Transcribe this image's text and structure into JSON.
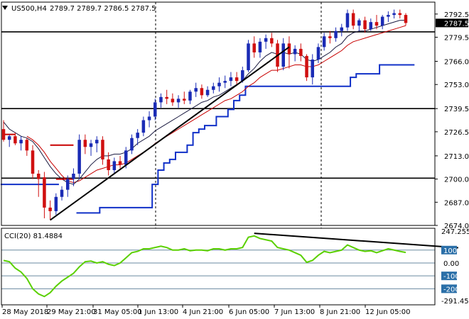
{
  "header": {
    "symbol_label": "US500,H4",
    "ohlc_text": "2789.7 2789.7 2786.5 2787.5"
  },
  "indicator_header": "CCI(20) 81.4884",
  "colors": {
    "bull": "#1a2bb5",
    "bear": "#d01010",
    "blue_line": "#1030c8",
    "red_line": "#c80000",
    "cci": "#5ad000",
    "trend": "#000000",
    "current_tag": "#000000"
  },
  "chart_data": {
    "type": "candlestick",
    "price_axis": {
      "ylim": [
        2674.0,
        2796.0
      ],
      "ticks": [
        "2792.5",
        "2779.5",
        "2766.0",
        "2753.0",
        "2739.5",
        "2726.5",
        "2713.0",
        "2700.0",
        "2687.0",
        "2674.0"
      ]
    },
    "current_price": "2787.5",
    "x_ticks": [
      "28 May 2018",
      "29 May 21:00",
      "31 May 05:00",
      "1 Jun 13:00",
      "4 Jun 21:00",
      "6 Jun 05:00",
      "7 Jun 13:00",
      "8 Jun 21:00",
      "12 Jun 05:00"
    ],
    "candles": [
      {
        "o": 2728,
        "h": 2733,
        "l": 2721,
        "c": 2722
      },
      {
        "o": 2722,
        "h": 2725,
        "l": 2718,
        "c": 2724
      },
      {
        "o": 2724,
        "h": 2726,
        "l": 2719,
        "c": 2720
      },
      {
        "o": 2720,
        "h": 2724,
        "l": 2716,
        "c": 2722
      },
      {
        "o": 2722,
        "h": 2723,
        "l": 2713,
        "c": 2716
      },
      {
        "o": 2716,
        "h": 2719,
        "l": 2700,
        "c": 2703
      },
      {
        "o": 2703,
        "h": 2705,
        "l": 2690,
        "c": 2700
      },
      {
        "o": 2701,
        "h": 2704,
        "l": 2678,
        "c": 2684
      },
      {
        "o": 2684,
        "h": 2688,
        "l": 2677,
        "c": 2682
      },
      {
        "o": 2682,
        "h": 2692,
        "l": 2680,
        "c": 2690
      },
      {
        "o": 2690,
        "h": 2696,
        "l": 2688,
        "c": 2694
      },
      {
        "o": 2694,
        "h": 2702,
        "l": 2690,
        "c": 2700
      },
      {
        "o": 2700,
        "h": 2706,
        "l": 2696,
        "c": 2703
      },
      {
        "o": 2703,
        "h": 2725,
        "l": 2700,
        "c": 2722
      },
      {
        "o": 2722,
        "h": 2725,
        "l": 2714,
        "c": 2718
      },
      {
        "o": 2718,
        "h": 2722,
        "l": 2713,
        "c": 2720
      },
      {
        "o": 2720,
        "h": 2724,
        "l": 2715,
        "c": 2722
      },
      {
        "o": 2722,
        "h": 2724,
        "l": 2708,
        "c": 2711
      },
      {
        "o": 2711,
        "h": 2715,
        "l": 2702,
        "c": 2705
      },
      {
        "o": 2705,
        "h": 2712,
        "l": 2703,
        "c": 2710
      },
      {
        "o": 2710,
        "h": 2713,
        "l": 2706,
        "c": 2708
      },
      {
        "o": 2708,
        "h": 2718,
        "l": 2706,
        "c": 2716
      },
      {
        "o": 2716,
        "h": 2725,
        "l": 2714,
        "c": 2723
      },
      {
        "o": 2723,
        "h": 2728,
        "l": 2719,
        "c": 2726
      },
      {
        "o": 2726,
        "h": 2735,
        "l": 2724,
        "c": 2733
      },
      {
        "o": 2733,
        "h": 2738,
        "l": 2729,
        "c": 2735
      },
      {
        "o": 2735,
        "h": 2745,
        "l": 2733,
        "c": 2743
      },
      {
        "o": 2743,
        "h": 2748,
        "l": 2740,
        "c": 2746
      },
      {
        "o": 2746,
        "h": 2750,
        "l": 2742,
        "c": 2745
      },
      {
        "o": 2745,
        "h": 2748,
        "l": 2741,
        "c": 2743
      },
      {
        "o": 2743,
        "h": 2747,
        "l": 2740,
        "c": 2745
      },
      {
        "o": 2745,
        "h": 2749,
        "l": 2742,
        "c": 2744
      },
      {
        "o": 2744,
        "h": 2750,
        "l": 2742,
        "c": 2749
      },
      {
        "o": 2749,
        "h": 2754,
        "l": 2746,
        "c": 2751
      },
      {
        "o": 2751,
        "h": 2753,
        "l": 2745,
        "c": 2747
      },
      {
        "o": 2747,
        "h": 2752,
        "l": 2746,
        "c": 2750
      },
      {
        "o": 2750,
        "h": 2754,
        "l": 2748,
        "c": 2752
      },
      {
        "o": 2752,
        "h": 2757,
        "l": 2749,
        "c": 2754
      },
      {
        "o": 2754,
        "h": 2758,
        "l": 2751,
        "c": 2755
      },
      {
        "o": 2755,
        "h": 2760,
        "l": 2752,
        "c": 2757
      },
      {
        "o": 2757,
        "h": 2760,
        "l": 2753,
        "c": 2755
      },
      {
        "o": 2755,
        "h": 2763,
        "l": 2754,
        "c": 2761
      },
      {
        "o": 2761,
        "h": 2778,
        "l": 2760,
        "c": 2776
      },
      {
        "o": 2776,
        "h": 2780,
        "l": 2768,
        "c": 2771
      },
      {
        "o": 2771,
        "h": 2779,
        "l": 2768,
        "c": 2777
      },
      {
        "o": 2777,
        "h": 2781,
        "l": 2773,
        "c": 2779
      },
      {
        "o": 2779,
        "h": 2782,
        "l": 2774,
        "c": 2776
      },
      {
        "o": 2776,
        "h": 2778,
        "l": 2760,
        "c": 2763
      },
      {
        "o": 2763,
        "h": 2779,
        "l": 2761,
        "c": 2776
      },
      {
        "o": 2776,
        "h": 2780,
        "l": 2762,
        "c": 2770
      },
      {
        "o": 2770,
        "h": 2775,
        "l": 2766,
        "c": 2773
      },
      {
        "o": 2773,
        "h": 2776,
        "l": 2766,
        "c": 2769
      },
      {
        "o": 2769,
        "h": 2770,
        "l": 2755,
        "c": 2757
      },
      {
        "o": 2757,
        "h": 2770,
        "l": 2753,
        "c": 2767
      },
      {
        "o": 2767,
        "h": 2776,
        "l": 2765,
        "c": 2774
      },
      {
        "o": 2774,
        "h": 2782,
        "l": 2772,
        "c": 2780
      },
      {
        "o": 2780,
        "h": 2783,
        "l": 2776,
        "c": 2779
      },
      {
        "o": 2779,
        "h": 2785,
        "l": 2777,
        "c": 2783
      },
      {
        "o": 2783,
        "h": 2787,
        "l": 2780,
        "c": 2785
      },
      {
        "o": 2785,
        "h": 2795,
        "l": 2783,
        "c": 2793
      },
      {
        "o": 2793,
        "h": 2795,
        "l": 2784,
        "c": 2786
      },
      {
        "o": 2786,
        "h": 2790,
        "l": 2783,
        "c": 2789
      },
      {
        "o": 2789,
        "h": 2791,
        "l": 2782,
        "c": 2784
      },
      {
        "o": 2784,
        "h": 2790,
        "l": 2783,
        "c": 2788
      },
      {
        "o": 2788,
        "h": 2792,
        "l": 2784,
        "c": 2786
      },
      {
        "o": 2786,
        "h": 2792,
        "l": 2784,
        "c": 2791
      },
      {
        "o": 2791,
        "h": 2794,
        "l": 2788,
        "c": 2792
      },
      {
        "o": 2792,
        "h": 2795,
        "l": 2790,
        "c": 2793
      },
      {
        "o": 2793,
        "h": 2795,
        "l": 2790,
        "c": 2792
      },
      {
        "o": 2792,
        "h": 2793,
        "l": 2786,
        "c": 2787.5
      }
    ],
    "blue_line": [
      2697,
      2697,
      2697,
      2697,
      2697,
      2697,
      2697,
      2697,
      2697,
      2697,
      null,
      null,
      null,
      2681,
      2681,
      2681,
      2681,
      2684,
      2684,
      2684,
      2684,
      2684,
      2684,
      2684,
      2684,
      2684,
      2697,
      2705,
      2709,
      2711,
      2715,
      2715,
      2719,
      2726,
      2728,
      2730,
      2730,
      2735,
      2735,
      2739,
      2744,
      2747,
      2752,
      2752,
      2752,
      2752,
      2752,
      2752,
      2752,
      2752,
      2752,
      2752,
      2752,
      2752,
      2752,
      2752,
      2752,
      2752,
      2752,
      2752,
      2757,
      2759,
      2759,
      2759,
      2759,
      2764,
      2764,
      2764,
      2764,
      2764,
      2764
    ],
    "black_ma": [
      2732,
      2728,
      2726,
      2724,
      2723,
      2721,
      2717,
      2712,
      2707,
      2703,
      2700,
      2698,
      2697,
      2700,
      2704,
      2708,
      2711,
      2713,
      2713,
      2714,
      2714,
      2715,
      2717,
      2720,
      2722,
      2724,
      2727,
      2729,
      2731,
      2733,
      2735,
      2737,
      2739,
      2741,
      2743,
      2744,
      2746,
      2747,
      2749,
      2751,
      2753,
      2755,
      2759,
      2762,
      2766,
      2769,
      2771,
      2770,
      2771,
      2770,
      2771,
      2770,
      2767,
      2766,
      2767,
      2769,
      2771,
      2774,
      2776,
      2780,
      2782,
      2783,
      2783,
      2784,
      2785,
      2786,
      2787,
      2788,
      2789,
      2789
    ],
    "red_ma": [
      null,
      null,
      null,
      null,
      2724,
      2722,
      2719,
      2715,
      2710,
      2706,
      2702,
      2699,
      2698,
      2699,
      2701,
      2703,
      2705,
      2706,
      2707,
      2708,
      2708,
      2709,
      2711,
      2713,
      2715,
      2717,
      2720,
      2722,
      2724,
      2726,
      2728,
      2730,
      2732,
      2734,
      2736,
      2738,
      2740,
      2742,
      2744,
      2745,
      2747,
      2749,
      2752,
      2754,
      2757,
      2759,
      2761,
      2761,
      2762,
      2763,
      2764,
      2764,
      2763,
      2763,
      2764,
      2766,
      2768,
      2770,
      2772,
      2775,
      2777,
      2778,
      2779,
      2780,
      2781,
      2782,
      2783,
      2784,
      2785,
      2786
    ],
    "red_steps": [
      {
        "from": 9,
        "to": 12,
        "y": 2700
      },
      {
        "from": 8,
        "to": 12,
        "y": 2719
      },
      {
        "from": 0,
        "to": 2,
        "y": 2725
      }
    ],
    "horizontal_lines": [
      2782.5,
      2739.5,
      2700.5
    ],
    "trendline_price": [
      {
        "i": 8,
        "y": 2677
      },
      {
        "i": 49,
        "y": 2774
      }
    ],
    "cci": {
      "name": "CCI(20)",
      "ylim": [
        -291.451,
        247.2553
      ],
      "levels": [
        100,
        0.0,
        -100,
        -200
      ],
      "tick_labels": [
        "247.2553",
        "100",
        "0.00",
        "-100",
        "-200",
        "-291.451"
      ],
      "values": [
        20,
        10,
        -40,
        -70,
        -120,
        -200,
        -240,
        -260,
        -230,
        -180,
        -140,
        -110,
        -80,
        -30,
        10,
        15,
        0,
        10,
        -10,
        -20,
        0,
        40,
        80,
        90,
        110,
        110,
        120,
        130,
        120,
        100,
        100,
        110,
        95,
        100,
        100,
        95,
        110,
        110,
        100,
        110,
        110,
        120,
        200,
        210,
        190,
        180,
        170,
        120,
        110,
        100,
        80,
        60,
        5,
        20,
        60,
        90,
        80,
        90,
        100,
        140,
        120,
        100,
        90,
        95,
        80,
        95,
        110,
        100,
        90,
        81.5
      ],
      "trendline": [
        {
          "i": 43,
          "y": 230
        },
        {
          "i": 78,
          "y": 118
        }
      ]
    }
  }
}
